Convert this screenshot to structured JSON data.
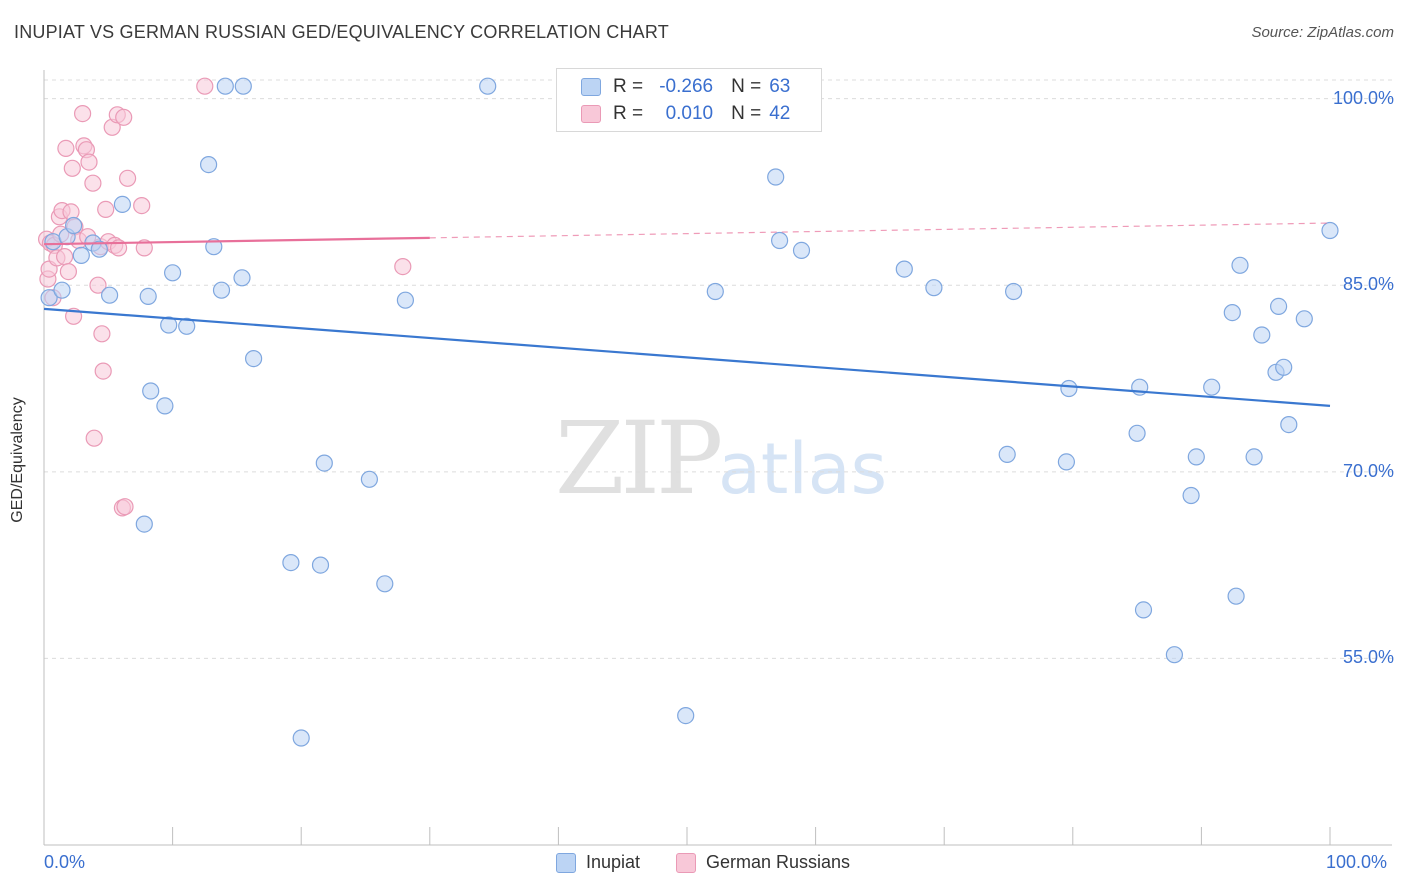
{
  "title": "INUPIAT VS GERMAN RUSSIAN GED/EQUIVALENCY CORRELATION CHART",
  "source": "Source: ZipAtlas.com",
  "watermark": {
    "zip": "ZIP",
    "atlas": "atlas"
  },
  "legend": {
    "r_label": "R =",
    "n_label": "N =",
    "rows": [
      {
        "series": "Inupiat",
        "r": "-0.266",
        "n": "63"
      },
      {
        "series": "German Russians",
        "r": "0.010",
        "n": "42"
      }
    ]
  },
  "colors": {
    "inupiat_fill": "#bcd4f4",
    "inupiat_stroke": "#7fa7df",
    "inupiat_line": "#3a78d0",
    "german_fill": "#f8c8d8",
    "german_stroke": "#ea9ab6",
    "german_line": "#e8709a",
    "grid": "#dcdcdc",
    "axis_text": "#3a6fcf"
  },
  "chart_data": {
    "type": "scatter",
    "title": "INUPIAT VS GERMAN RUSSIAN GED/EQUIVALENCY CORRELATION CHART",
    "xlabel": "",
    "ylabel": "GED/Equivalency",
    "xlim": [
      0,
      100
    ],
    "ylim": [
      40,
      101.5
    ],
    "x_tick_labels": [
      "0.0%",
      "100.0%"
    ],
    "y_ticks": [
      {
        "value": 100,
        "label": "100.0%"
      },
      {
        "value": 85,
        "label": "85.0%"
      },
      {
        "value": 70,
        "label": "70.0%"
      },
      {
        "value": 55,
        "label": "55.0%"
      }
    ],
    "grid": true,
    "legend_position": "top-center",
    "series": [
      {
        "name": "Inupiat",
        "trend": {
          "x": [
            0,
            100
          ],
          "y": [
            83.1,
            75.3
          ]
        },
        "points": [
          [
            0.4,
            84.0
          ],
          [
            0.7,
            88.5
          ],
          [
            1.4,
            84.6
          ],
          [
            1.8,
            88.9
          ],
          [
            2.3,
            89.8
          ],
          [
            2.9,
            87.4
          ],
          [
            3.8,
            88.4
          ],
          [
            4.3,
            87.9
          ],
          [
            5.1,
            84.2
          ],
          [
            6.1,
            91.5
          ],
          [
            8.1,
            84.1
          ],
          [
            7.8,
            65.8
          ],
          [
            8.3,
            76.5
          ],
          [
            9.4,
            75.3
          ],
          [
            9.7,
            81.8
          ],
          [
            10.0,
            86.0
          ],
          [
            11.1,
            81.7
          ],
          [
            12.8,
            94.7
          ],
          [
            13.2,
            88.1
          ],
          [
            13.8,
            84.6
          ],
          [
            14.1,
            101.0
          ],
          [
            15.4,
            85.6
          ],
          [
            15.5,
            101.0
          ],
          [
            16.3,
            79.1
          ],
          [
            19.2,
            62.7
          ],
          [
            20.0,
            48.6
          ],
          [
            21.5,
            62.5
          ],
          [
            21.8,
            70.7
          ],
          [
            25.3,
            69.4
          ],
          [
            26.5,
            61.0
          ],
          [
            28.1,
            83.8
          ],
          [
            34.5,
            101.0
          ],
          [
            47.3,
            101.0
          ],
          [
            49.9,
            50.4
          ],
          [
            52.2,
            84.5
          ],
          [
            56.9,
            93.7
          ],
          [
            57.2,
            88.6
          ],
          [
            58.9,
            87.8
          ],
          [
            66.9,
            86.3
          ],
          [
            69.2,
            84.8
          ],
          [
            74.9,
            71.4
          ],
          [
            75.4,
            84.5
          ],
          [
            79.5,
            70.8
          ],
          [
            79.7,
            76.7
          ],
          [
            85.0,
            73.1
          ],
          [
            85.2,
            76.8
          ],
          [
            85.5,
            58.9
          ],
          [
            87.9,
            55.3
          ],
          [
            89.2,
            68.1
          ],
          [
            89.6,
            71.2
          ],
          [
            90.8,
            76.8
          ],
          [
            92.4,
            82.8
          ],
          [
            92.7,
            60.0
          ],
          [
            93.0,
            86.6
          ],
          [
            94.1,
            71.2
          ],
          [
            94.7,
            81.0
          ],
          [
            95.8,
            78.0
          ],
          [
            96.0,
            83.3
          ],
          [
            96.4,
            78.4
          ],
          [
            96.8,
            73.8
          ],
          [
            98.0,
            82.3
          ],
          [
            100.0,
            89.4
          ]
        ]
      },
      {
        "name": "German Russians",
        "trend": {
          "x": [
            0,
            100
          ],
          "y": [
            88.3,
            90.0
          ]
        },
        "points": [
          [
            0.2,
            88.7
          ],
          [
            0.3,
            85.5
          ],
          [
            0.4,
            86.3
          ],
          [
            0.5,
            88.4
          ],
          [
            0.7,
            84.0
          ],
          [
            0.8,
            88.2
          ],
          [
            1.0,
            87.2
          ],
          [
            1.2,
            90.5
          ],
          [
            1.3,
            89.1
          ],
          [
            1.4,
            91.0
          ],
          [
            1.6,
            87.3
          ],
          [
            1.7,
            96.0
          ],
          [
            1.9,
            86.1
          ],
          [
            2.1,
            90.9
          ],
          [
            2.2,
            94.4
          ],
          [
            2.3,
            82.5
          ],
          [
            2.4,
            89.7
          ],
          [
            2.7,
            88.6
          ],
          [
            3.0,
            98.8
          ],
          [
            3.1,
            96.2
          ],
          [
            3.3,
            95.9
          ],
          [
            3.4,
            88.9
          ],
          [
            3.5,
            94.9
          ],
          [
            3.8,
            93.2
          ],
          [
            3.9,
            72.7
          ],
          [
            4.2,
            85.0
          ],
          [
            4.4,
            88.1
          ],
          [
            4.5,
            81.1
          ],
          [
            4.6,
            78.1
          ],
          [
            4.8,
            91.1
          ],
          [
            5.0,
            88.5
          ],
          [
            5.3,
            97.7
          ],
          [
            5.5,
            88.2
          ],
          [
            5.7,
            98.7
          ],
          [
            5.8,
            88.0
          ],
          [
            6.1,
            67.1
          ],
          [
            6.2,
            98.5
          ],
          [
            6.3,
            67.2
          ],
          [
            6.5,
            93.6
          ],
          [
            7.6,
            91.4
          ],
          [
            7.8,
            88.0
          ],
          [
            12.5,
            101.0
          ],
          [
            27.9,
            86.5
          ]
        ]
      }
    ]
  },
  "bottom_legend": [
    "Inupiat",
    "German Russians"
  ]
}
